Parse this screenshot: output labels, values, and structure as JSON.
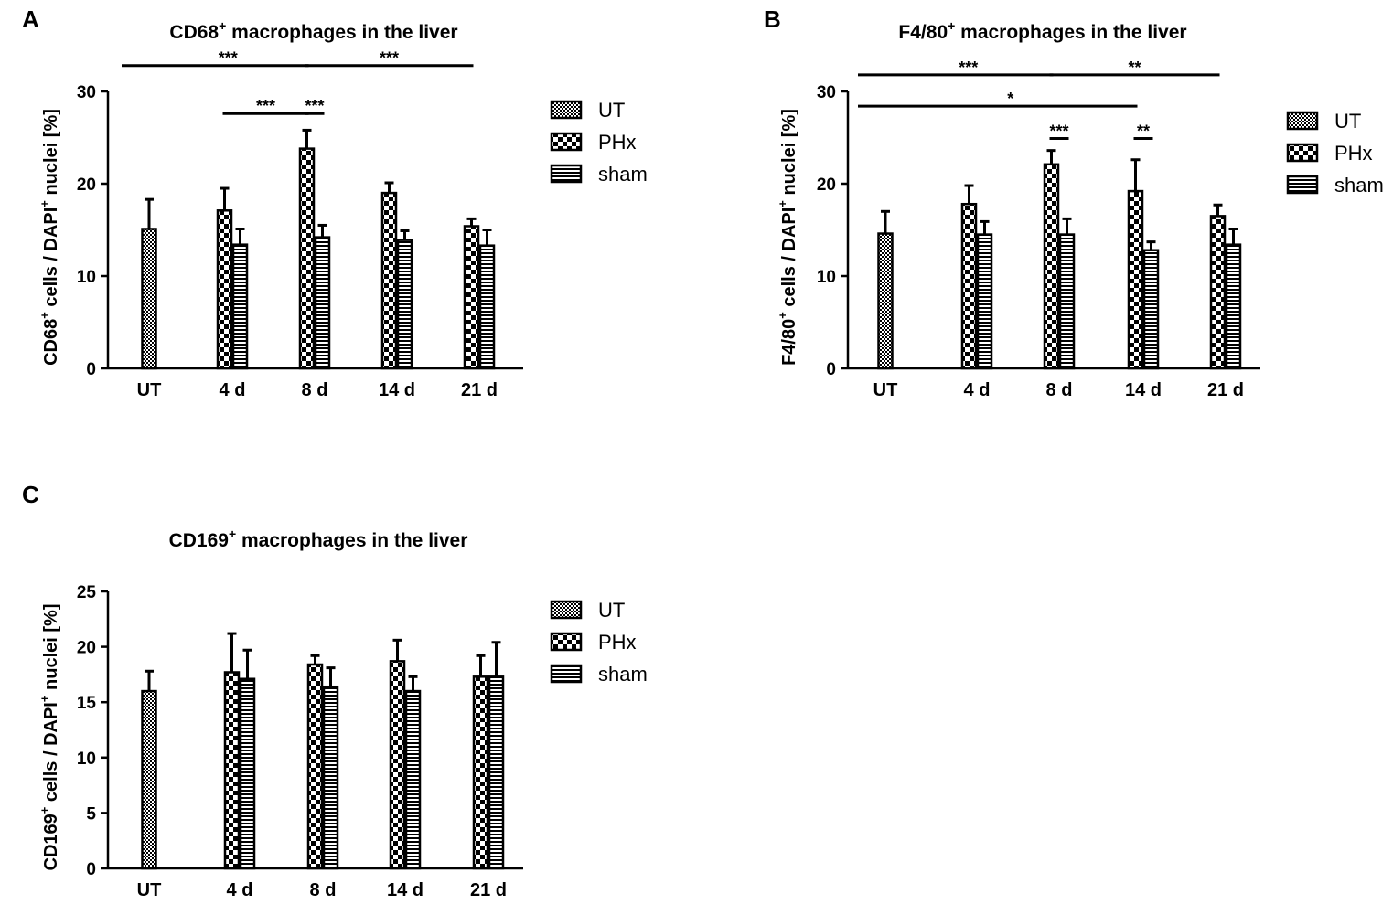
{
  "chart_data": [
    {
      "panel": "A",
      "type": "bar",
      "title": "CD68",
      "title_sup": "+",
      "title_rest": " macrophages in the liver",
      "ylabel_parts": [
        "CD68",
        "+",
        " cells / DAPI",
        "+",
        " nuclei [%]"
      ],
      "ylim": [
        0,
        30
      ],
      "yticks": [
        0,
        10,
        20,
        30
      ],
      "categories": [
        "UT",
        "4 d",
        "8 d",
        "14 d",
        "21 d"
      ],
      "legend": [
        "UT",
        "PHx",
        "sham"
      ],
      "series": [
        {
          "name": "UT",
          "values": [
            15.1,
            null,
            null,
            null,
            null
          ],
          "errors": [
            3.2,
            null,
            null,
            null,
            null
          ]
        },
        {
          "name": "PHx",
          "values": [
            null,
            17.1,
            23.8,
            19.0,
            15.4
          ],
          "errors": [
            null,
            2.4,
            2.0,
            1.1,
            0.8
          ]
        },
        {
          "name": "sham",
          "values": [
            null,
            13.4,
            14.2,
            13.9,
            13.3
          ],
          "errors": [
            null,
            1.7,
            1.3,
            1.0,
            1.7
          ]
        }
      ],
      "significance": [
        {
          "from": [
            "UT",
            "UT"
          ],
          "to": [
            "8 d",
            "PHx"
          ],
          "label": "***",
          "level": 32.8
        },
        {
          "from": [
            "8 d",
            "PHx"
          ],
          "to": [
            "21 d",
            "PHx"
          ],
          "label": "***",
          "level": 32.8
        },
        {
          "from": [
            "4 d",
            "PHx"
          ],
          "to": [
            "8 d",
            "PHx"
          ],
          "label": "***",
          "level": 27.6
        },
        {
          "from": [
            "8 d",
            "PHx"
          ],
          "to": [
            "8 d",
            "sham"
          ],
          "label": "***",
          "level": 27.6
        }
      ]
    },
    {
      "panel": "B",
      "type": "bar",
      "title": "F4/80",
      "title_sup": "+",
      "title_rest": " macrophages in the liver",
      "ylabel_parts": [
        "F4/80",
        "+",
        " cells / DAPI",
        "+",
        " nuclei [%]"
      ],
      "ylim": [
        0,
        30
      ],
      "yticks": [
        0,
        10,
        20,
        30
      ],
      "categories": [
        "UT",
        "4 d",
        "8 d",
        "14 d",
        "21 d"
      ],
      "legend": [
        "UT",
        "PHx",
        "sham"
      ],
      "series": [
        {
          "name": "UT",
          "values": [
            14.6,
            null,
            null,
            null,
            null
          ],
          "errors": [
            2.4,
            null,
            null,
            null,
            null
          ]
        },
        {
          "name": "PHx",
          "values": [
            null,
            17.8,
            22.1,
            19.2,
            16.5
          ],
          "errors": [
            null,
            2.0,
            1.5,
            3.4,
            1.2
          ]
        },
        {
          "name": "sham",
          "values": [
            null,
            14.5,
            14.5,
            12.8,
            13.4
          ],
          "errors": [
            null,
            1.4,
            1.7,
            0.9,
            1.7
          ]
        }
      ],
      "significance": [
        {
          "from": [
            "UT",
            "UT"
          ],
          "to": [
            "8 d",
            "PHx"
          ],
          "label": "***",
          "level": 31.8
        },
        {
          "from": [
            "8 d",
            "PHx"
          ],
          "to": [
            "21 d",
            "PHx"
          ],
          "label": "**",
          "level": 31.8
        },
        {
          "from": [
            "UT",
            "UT"
          ],
          "to": [
            "14 d",
            "PHx"
          ],
          "label": "*",
          "level": 28.4
        },
        {
          "from": [
            "8 d",
            "PHx"
          ],
          "to": [
            "8 d",
            "sham"
          ],
          "label": "***",
          "level": 24.9
        },
        {
          "from": [
            "14 d",
            "PHx"
          ],
          "to": [
            "14 d",
            "sham"
          ],
          "label": "**",
          "level": 24.9
        }
      ]
    },
    {
      "panel": "C",
      "type": "bar",
      "title": "CD169",
      "title_sup": "+",
      "title_rest": " macrophages in the liver",
      "ylabel_parts": [
        "CD169",
        "+",
        " cells / DAPI",
        "+",
        " nuclei [%]"
      ],
      "ylim": [
        0,
        25
      ],
      "yticks": [
        0,
        5,
        10,
        15,
        20,
        25
      ],
      "categories": [
        "UT",
        "4 d",
        "8 d",
        "14 d",
        "21 d"
      ],
      "legend": [
        "UT",
        "PHx",
        "sham"
      ],
      "series": [
        {
          "name": "UT",
          "values": [
            16.0,
            null,
            null,
            null,
            null
          ],
          "errors": [
            1.8,
            null,
            null,
            null,
            null
          ]
        },
        {
          "name": "PHx",
          "values": [
            null,
            17.7,
            18.4,
            18.7,
            17.3
          ],
          "errors": [
            null,
            3.5,
            0.8,
            1.9,
            1.9
          ]
        },
        {
          "name": "sham",
          "values": [
            null,
            17.1,
            16.4,
            16.0,
            17.3
          ],
          "errors": [
            null,
            2.6,
            1.7,
            1.3,
            3.1
          ]
        }
      ],
      "significance": []
    }
  ]
}
